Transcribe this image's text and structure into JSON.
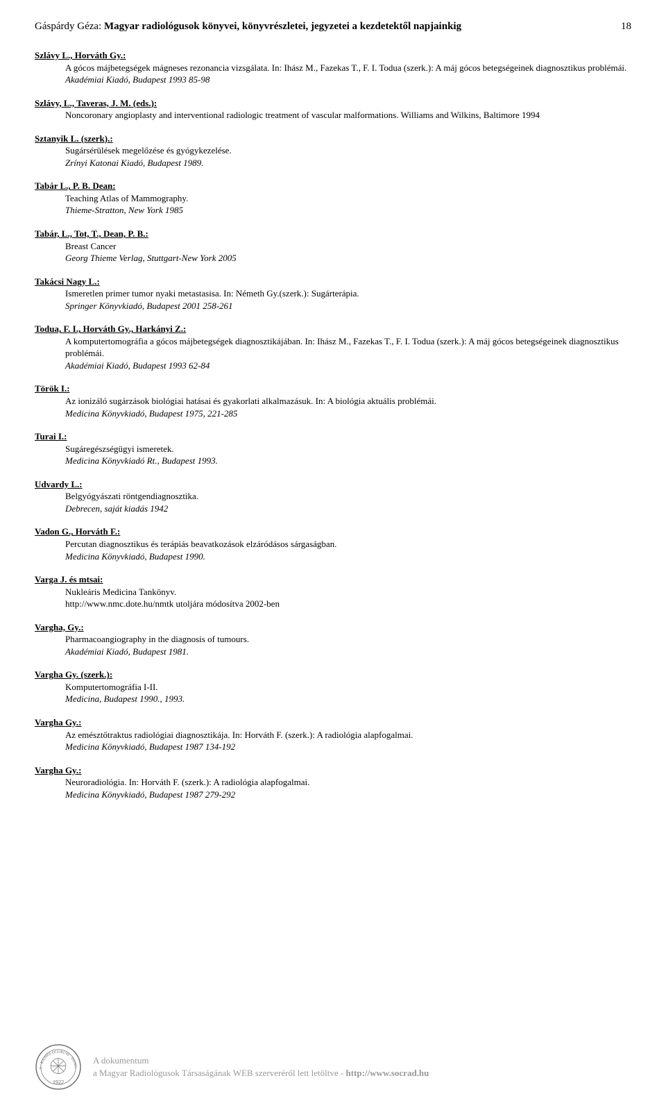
{
  "header": {
    "author": "Gáspárdy Géza: ",
    "title": "Magyar radiológusok könyvei, könyvrészletei, jegyzetei a kezdetektől napjainkig",
    "page_number": "18"
  },
  "entries": [
    {
      "author": "Szlávy L., Horváth Gy.:",
      "title": "A gócos májbetegségek mágneses rezonancia vizsgálata. In: Ihász M., Fazekas T., F. I. Todua (szerk.): A máj gócos betegségeinek diagnosztikus problémái.",
      "pub": "Akadémiai Kiadó, Budapest 1993 85-98"
    },
    {
      "author": "Szlávy, L., Taveras, J. M. (eds.):",
      "title": "Noncoronary angioplasty and interventional radiologic treatment of vascular malformations. Williams and Wilkins, Baltimore 1994",
      "pub": ""
    },
    {
      "author": "Sztanyik L. (szerk).:",
      "title": "Sugársérülések megelőzése és gyógykezelése.",
      "pub": "Zrínyi Katonai Kiadó, Budapest 1989."
    },
    {
      "author": "Tabár L., P. B. Dean:",
      "title": "Teaching Atlas of Mammography.",
      "pub": "Thieme-Stratton, New York 1985"
    },
    {
      "author": "Tabár, L., Tot, T., Dean, P. B.:",
      "title": "Breast Cancer",
      "pub": "Georg Thieme Verlag, Stuttgart-New York 2005"
    },
    {
      "author": "Takácsi Nagy L.:",
      "title": "Ismeretlen primer tumor nyaki metastasisa. In: Németh Gy.(szerk.): Sugárterápia.",
      "pub": "Springer Könyvkiadó, Budapest 2001 258-261"
    },
    {
      "author": "Todua, F. I., Horváth Gy., Harkányi Z.:",
      "title": "A komputertomográfia a gócos májbetegségek diagnosztikájában. In: Ihász M., Fazekas T., F. I. Todua (szerk.): A máj gócos betegségeinek diagnosztikus problémái.",
      "pub": "Akadémiai Kiadó, Budapest 1993 62-84"
    },
    {
      "author": "Török I.:",
      "title": "Az ionizáló sugárzások biológiai hatásai és gyakorlati alkalmazásuk. In: A biológia aktuális problémái.",
      "pub": "Medicina Könyvkiadó, Budapest 1975, 221-285"
    },
    {
      "author": "Turai I.:",
      "title": "Sugáregészségügyi ismeretek.",
      "pub": "Medicina Könyvkiadó Rt., Budapest 1993."
    },
    {
      "author": "Udvardy L.:",
      "title": "Belgyógyászati röntgendiagnosztika.",
      "pub": "Debrecen, saját kiadás 1942"
    },
    {
      "author": "Vadon G., Horváth F.:",
      "title": "Percutan diagnosztikus és terápiás beavatkozások elzáródásos sárgaságban.",
      "pub": "Medicina Könyvkiadó, Budapest 1990."
    },
    {
      "author": "Varga J. és mtsai:",
      "title": "Nukleáris Medicina Tankönyv.\nhttp://www.nmc.dote.hu/nmtk utoljára módosítva 2002-ben",
      "pub": ""
    },
    {
      "author": "Vargha, Gy.:",
      "title": "Pharmacoangiography in the diagnosis of tumours.",
      "pub": "Akadémiai Kiadó, Budapest 1981."
    },
    {
      "author": "Vargha Gy. (szerk.):",
      "title": "Komputertomográfia I-II.",
      "pub": "Medicina, Budapest 1990., 1993."
    },
    {
      "author": "Vargha Gy.:",
      "title": "Az emésztőtraktus radiológiai diagnosztikája. In: Horváth F. (szerk.): A radiológia alapfogalmai.",
      "pub": "Medicina Könyvkiadó, Budapest 1987 134-192"
    },
    {
      "author": "Vargha Gy.:",
      "title": "Neuroradiológia. In: Horváth F. (szerk.): A radiológia alapfogalmai.",
      "pub": "Medicina Könyvkiadó, Budapest 1987 279-292"
    }
  ],
  "footer": {
    "line1": "A dokumentum",
    "line2_a": "a Magyar Radiológusok Társaságának WEB szerveréről lett letöltve  -  ",
    "line2_url": "http://www.socrad.hu",
    "seal_stroke": "#666666",
    "seal_year": "1922"
  }
}
